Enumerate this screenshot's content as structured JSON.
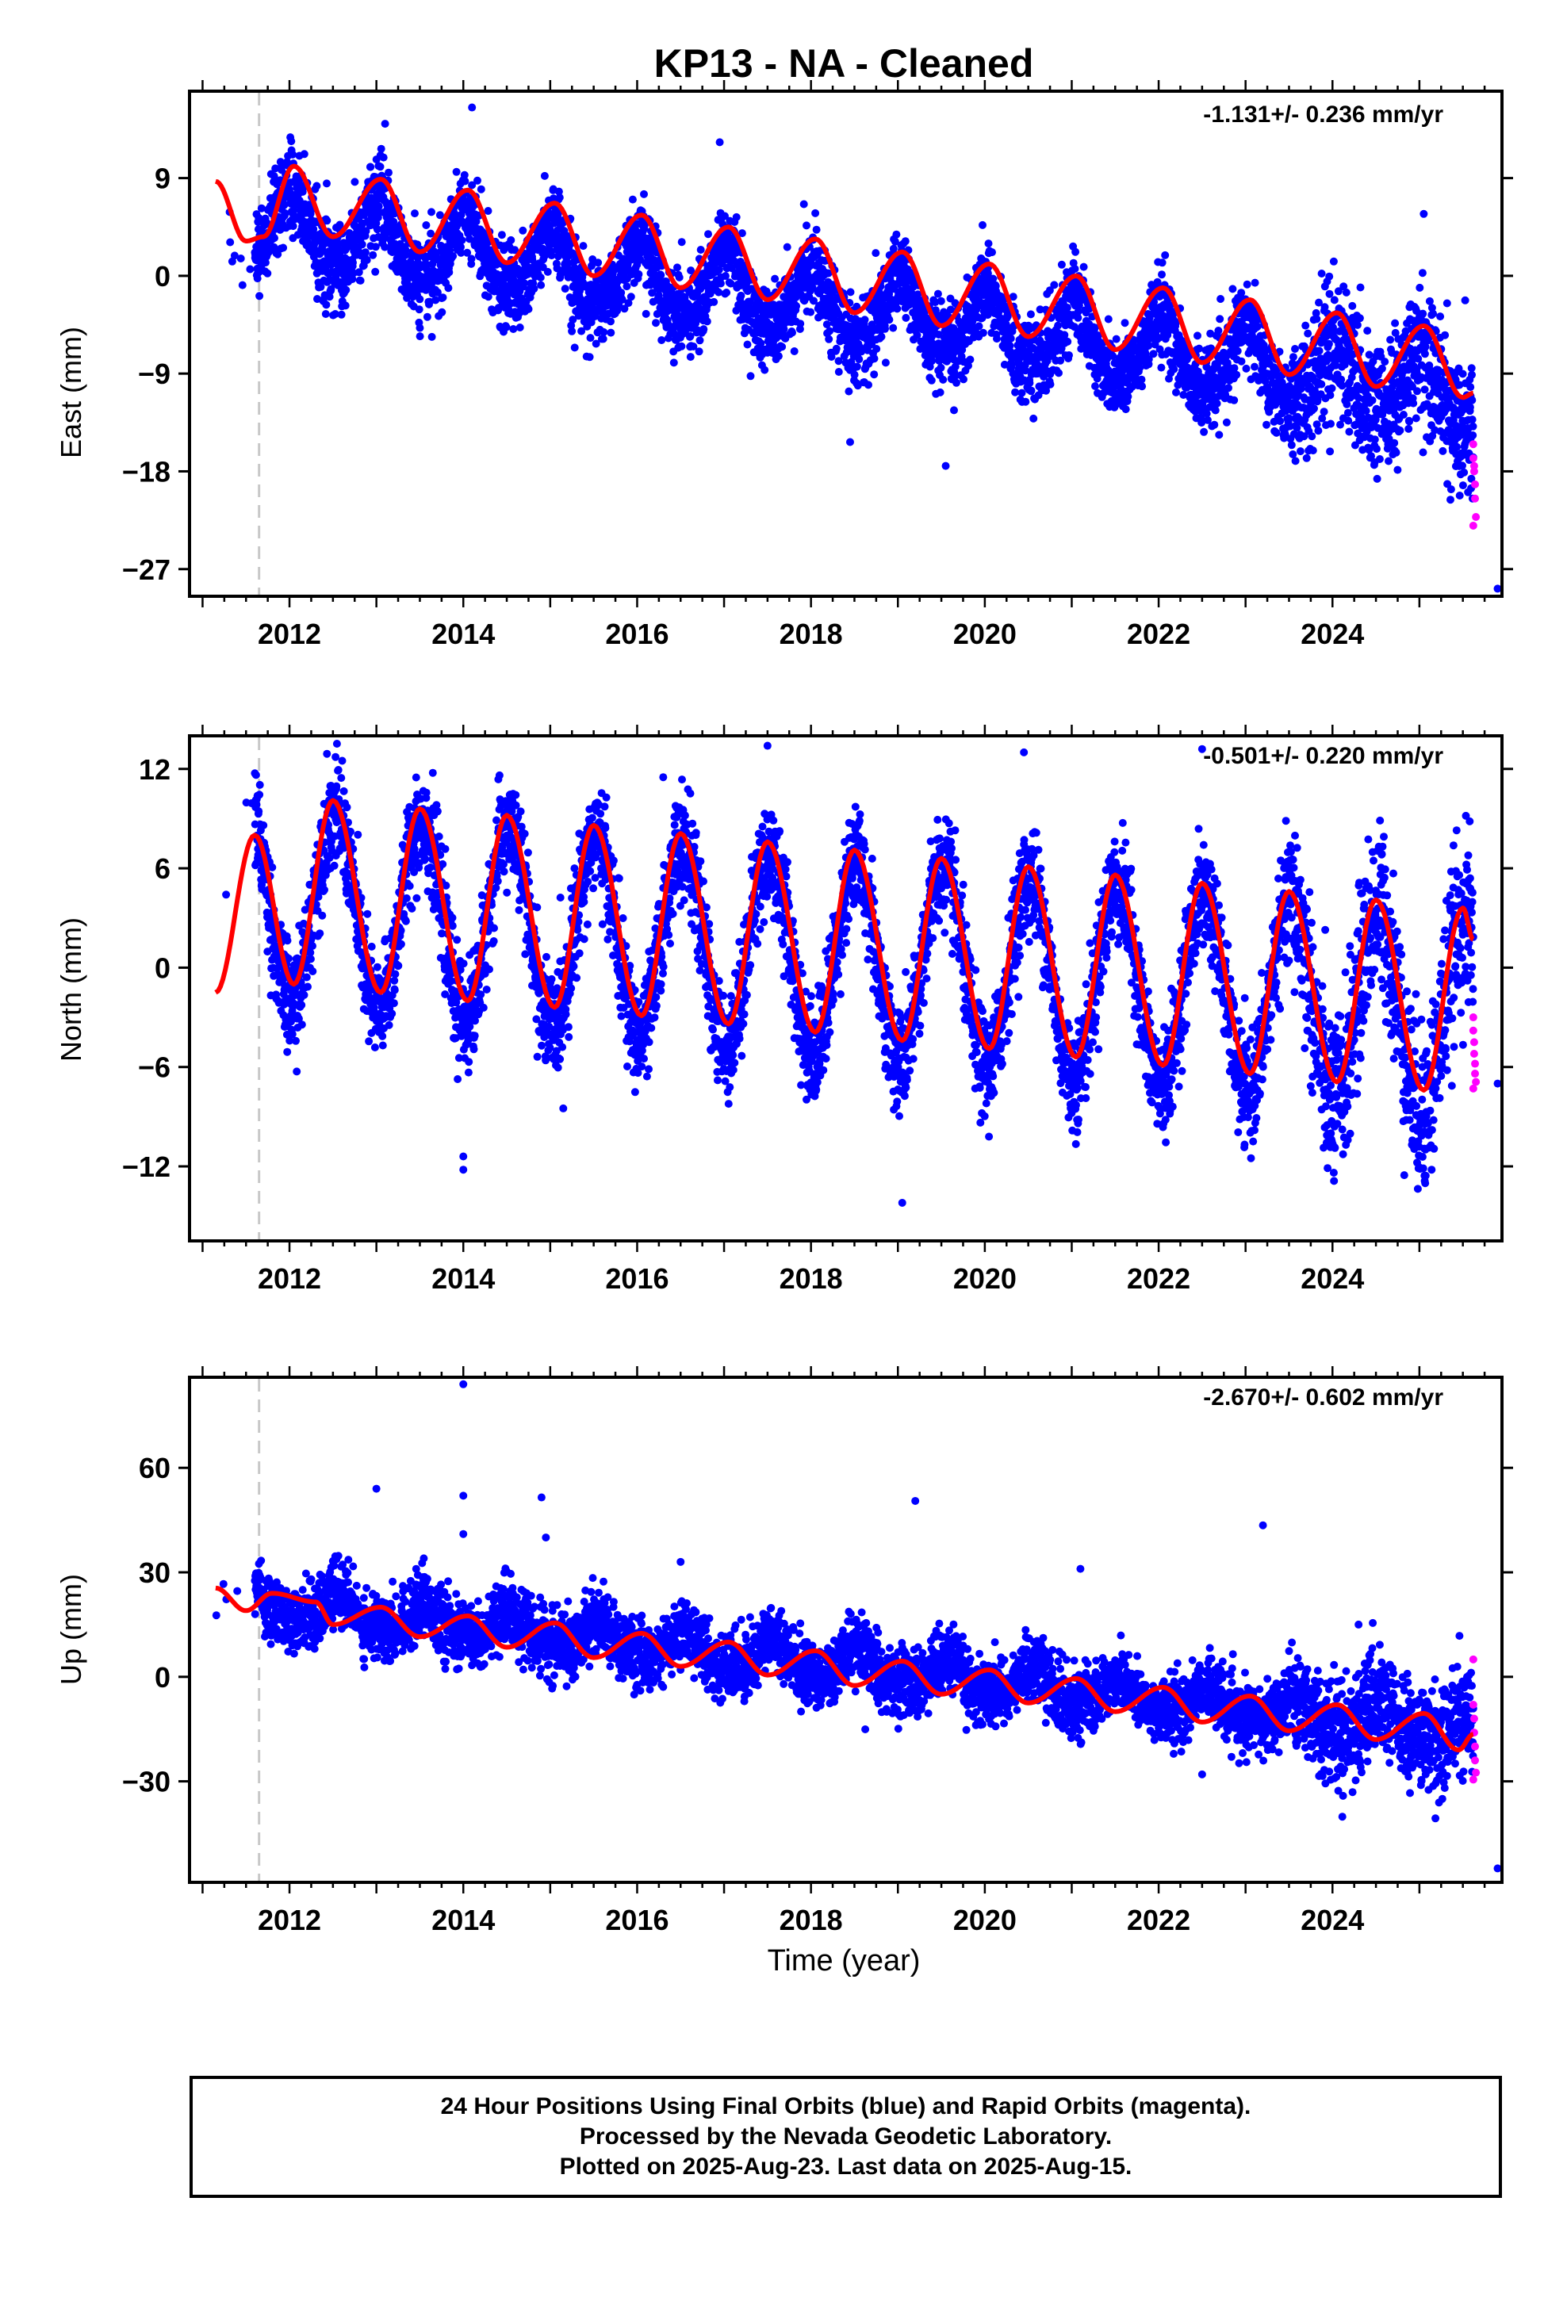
{
  "title": "KP13  - NA - Cleaned",
  "xlabel": "Time (year)",
  "caption": [
    "24 Hour Positions Using Final Orbits (blue) and Rapid Orbits (magenta).",
    "Processed by the Nevada Geodetic Laboratory.",
    "Plotted on 2025-Aug-23. Last data on 2025-Aug-15."
  ],
  "colors": {
    "final_orbits": "#0000ff",
    "rapid_orbits": "#ff00ff",
    "model": "#ff0000",
    "marker_line": "#c8c8c8"
  },
  "chart_data": [
    {
      "type": "scatter",
      "panel": "east",
      "ylabel": "East (mm)",
      "rate_text": "-1.131+/- 0.236 mm/yr",
      "xlim": [
        2010.85,
        2025.95
      ],
      "ylim": [
        -29.5,
        17
      ],
      "yticks": [
        9,
        0,
        -9,
        -18,
        -27
      ],
      "ytick_labels": [
        "9",
        "0",
        "−9",
        "−18",
        "−27"
      ],
      "xticks": [
        2012,
        2014,
        2016,
        2018,
        2020,
        2022,
        2024
      ],
      "xtick_labels": [
        "2012",
        "2014",
        "2016",
        "2018",
        "2020",
        "2022",
        "2024"
      ],
      "marker_line_x": 2011.65,
      "series": [
        {
          "role": "final_orbits",
          "model": {
            "t_start": 2011.15,
            "t_end": 2025.62,
            "t0": 2011.15,
            "offset": 5.2,
            "rate": -1.131,
            "annual_amplitude": 3.2,
            "peak_phase": 0.02,
            "semiannual_amplitude": 0.5
          },
          "scatter_sigma": 1.9,
          "outliers": [
            [
              2013.5,
              -4.8
            ],
            [
              2015.9,
              -2.5
            ],
            [
              2016.95,
              12.3
            ],
            [
              2018.45,
              -15.3
            ],
            [
              2019.55,
              -17.5
            ],
            [
              2025.9,
              -28.8
            ],
            [
              2025.05,
              5.7
            ],
            [
              2014.1,
              15.5
            ],
            [
              2013.1,
              14.0
            ]
          ]
        },
        {
          "role": "rapid_orbits",
          "points": [
            [
              2025.62,
              -15.5
            ],
            [
              2025.62,
              -16.8
            ],
            [
              2025.63,
              -17.5
            ],
            [
              2025.63,
              -18.0
            ],
            [
              2025.64,
              -19.2
            ],
            [
              2025.64,
              -20.5
            ],
            [
              2025.65,
              -22.2
            ],
            [
              2025.62,
              -23.0
            ]
          ]
        }
      ],
      "model_points": [
        [
          2011.15,
          8.7
        ],
        [
          2011.5,
          3.2
        ],
        [
          2011.7,
          3.6
        ],
        [
          2012.05,
          10.1
        ],
        [
          2012.5,
          3.6
        ],
        [
          2013.05,
          8.9
        ],
        [
          2013.5,
          2.2
        ],
        [
          2014.05,
          7.9
        ],
        [
          2014.5,
          1.2
        ],
        [
          2015.05,
          6.7
        ],
        [
          2015.5,
          0.0
        ],
        [
          2016.05,
          5.6
        ],
        [
          2016.5,
          -1.1
        ],
        [
          2017.05,
          4.5
        ],
        [
          2017.5,
          -2.2
        ],
        [
          2018.05,
          3.4
        ],
        [
          2018.5,
          -3.4
        ],
        [
          2019.05,
          2.2
        ],
        [
          2019.5,
          -4.6
        ],
        [
          2020.05,
          1.1
        ],
        [
          2020.5,
          -5.6
        ],
        [
          2021.05,
          0.0
        ],
        [
          2021.5,
          -6.8
        ],
        [
          2022.05,
          -1.1
        ],
        [
          2022.5,
          -8.0
        ],
        [
          2023.05,
          -2.2
        ],
        [
          2023.5,
          -9.1
        ],
        [
          2024.05,
          -3.4
        ],
        [
          2024.5,
          -10.2
        ],
        [
          2025.05,
          -4.6
        ],
        [
          2025.5,
          -11.2
        ],
        [
          2025.62,
          -10.8
        ]
      ]
    },
    {
      "type": "scatter",
      "panel": "north",
      "ylabel": "North (mm)",
      "rate_text": "-0.501+/- 0.220 mm/yr",
      "xlim": [
        2010.85,
        2025.95
      ],
      "ylim": [
        -16.5,
        14
      ],
      "yticks": [
        12,
        6,
        0,
        -6,
        -12
      ],
      "ytick_labels": [
        "12",
        "6",
        "0",
        "−6",
        "−12"
      ],
      "xticks": [
        2012,
        2014,
        2016,
        2018,
        2020,
        2022,
        2024
      ],
      "xtick_labels": [
        "2012",
        "2014",
        "2016",
        "2018",
        "2020",
        "2022",
        "2024"
      ],
      "marker_line_x": 2011.65,
      "series": [
        {
          "role": "final_orbits",
          "model": {
            "t_start": 2011.15,
            "t_end": 2025.62,
            "t0": 2011.15,
            "offset": 4.2,
            "rate": -0.501,
            "annual_amplitude": 5.9,
            "peak_phase": 0.52,
            "semiannual_amplitude": 0.0
          },
          "scatter_sigma": 1.6,
          "outliers": [
            [
              2014.0,
              -11.4
            ],
            [
              2014.0,
              -12.2
            ],
            [
              2015.15,
              -8.5
            ],
            [
              2019.05,
              -14.2
            ],
            [
              2017.5,
              13.4
            ],
            [
              2020.45,
              13.0
            ],
            [
              2022.5,
              13.2
            ],
            [
              2016.3,
              11.5
            ],
            [
              2025.9,
              -7.0
            ]
          ]
        },
        {
          "role": "rapid_orbits",
          "points": [
            [
              2025.62,
              -3.0
            ],
            [
              2025.62,
              -3.8
            ],
            [
              2025.63,
              -4.5
            ],
            [
              2025.63,
              -5.2
            ],
            [
              2025.64,
              -5.8
            ],
            [
              2025.64,
              -6.4
            ],
            [
              2025.65,
              -6.9
            ],
            [
              2025.62,
              -7.3
            ]
          ]
        }
      ],
      "model_points": [
        [
          2011.15,
          -1.5
        ],
        [
          2011.6,
          8.0
        ],
        [
          2012.05,
          -1.0
        ],
        [
          2012.5,
          10.1
        ],
        [
          2013.05,
          -1.5
        ],
        [
          2013.5,
          9.6
        ],
        [
          2014.05,
          -2.0
        ],
        [
          2014.5,
          9.2
        ],
        [
          2015.05,
          -2.4
        ],
        [
          2015.5,
          8.6
        ],
        [
          2016.05,
          -2.9
        ],
        [
          2016.5,
          8.1
        ],
        [
          2017.05,
          -3.4
        ],
        [
          2017.5,
          7.6
        ],
        [
          2018.05,
          -3.9
        ],
        [
          2018.5,
          7.1
        ],
        [
          2019.05,
          -4.4
        ],
        [
          2019.5,
          6.6
        ],
        [
          2020.05,
          -4.9
        ],
        [
          2020.5,
          6.1
        ],
        [
          2021.05,
          -5.4
        ],
        [
          2021.5,
          5.6
        ],
        [
          2022.05,
          -5.9
        ],
        [
          2022.5,
          5.1
        ],
        [
          2023.05,
          -6.4
        ],
        [
          2023.5,
          4.6
        ],
        [
          2024.05,
          -6.9
        ],
        [
          2024.5,
          4.1
        ],
        [
          2025.05,
          -7.4
        ],
        [
          2025.5,
          3.6
        ],
        [
          2025.62,
          1.7
        ]
      ]
    },
    {
      "type": "scatter",
      "panel": "up",
      "ylabel": "Up (mm)",
      "rate_text": "-2.670+/- 0.602 mm/yr",
      "xlim": [
        2010.85,
        2025.95
      ],
      "ylim": [
        -59,
        86
      ],
      "yticks": [
        60,
        30,
        0,
        -30
      ],
      "ytick_labels": [
        "60",
        "30",
        "0",
        "−30"
      ],
      "xticks": [
        2012,
        2014,
        2016,
        2018,
        2020,
        2022,
        2024
      ],
      "xtick_labels": [
        "2012",
        "2014",
        "2016",
        "2018",
        "2020",
        "2022",
        "2024"
      ],
      "marker_line_x": 2011.65,
      "series": [
        {
          "role": "final_orbits",
          "model": {
            "t_start": 2011.15,
            "t_end": 2025.62,
            "t0": 2011.15,
            "offset": 22.5,
            "rate": -2.67,
            "annual_amplitude": 4.2,
            "peak_phase": 0.55,
            "semiannual_amplitude": 1.2
          },
          "scatter_sigma": 4.6,
          "outliers": [
            [
              2014.0,
              84.0
            ],
            [
              2013.0,
              54.0
            ],
            [
              2014.0,
              52.0
            ],
            [
              2014.9,
              51.5
            ],
            [
              2019.2,
              50.5
            ],
            [
              2014.0,
              41.0
            ],
            [
              2014.95,
              40.0
            ],
            [
              2023.2,
              43.5
            ],
            [
              2021.1,
              31.0
            ],
            [
              2016.5,
              33.0
            ],
            [
              2025.9,
              -55.0
            ],
            [
              2024.3,
              15.0
            ],
            [
              2022.5,
              -28.0
            ]
          ]
        },
        {
          "role": "rapid_orbits",
          "points": [
            [
              2025.62,
              5.0
            ],
            [
              2025.62,
              -8.0
            ],
            [
              2025.63,
              -12.0
            ],
            [
              2025.63,
              -16.0
            ],
            [
              2025.64,
              -20.0
            ],
            [
              2025.64,
              -24.0
            ],
            [
              2025.65,
              -27.5
            ],
            [
              2025.62,
              -29.5
            ]
          ]
        }
      ],
      "model_points": [
        [
          2011.15,
          25.5
        ],
        [
          2011.5,
          19.0
        ],
        [
          2011.8,
          24.0
        ],
        [
          2012.3,
          21.5
        ],
        [
          2012.5,
          15.0
        ],
        [
          2013.05,
          20.0
        ],
        [
          2013.5,
          11.5
        ],
        [
          2014.05,
          17.5
        ],
        [
          2014.5,
          8.5
        ],
        [
          2015.05,
          15.5
        ],
        [
          2015.5,
          5.5
        ],
        [
          2016.05,
          12.5
        ],
        [
          2016.5,
          3.0
        ],
        [
          2017.05,
          10.0
        ],
        [
          2017.5,
          0.5
        ],
        [
          2018.05,
          7.5
        ],
        [
          2018.5,
          -2.5
        ],
        [
          2019.05,
          4.5
        ],
        [
          2019.5,
          -5.0
        ],
        [
          2020.05,
          2.0
        ],
        [
          2020.5,
          -7.5
        ],
        [
          2021.05,
          -0.5
        ],
        [
          2021.5,
          -10.0
        ],
        [
          2022.05,
          -3.0
        ],
        [
          2022.5,
          -13.0
        ],
        [
          2023.05,
          -5.5
        ],
        [
          2023.5,
          -15.5
        ],
        [
          2024.05,
          -8.0
        ],
        [
          2024.5,
          -18.0
        ],
        [
          2025.05,
          -10.5
        ],
        [
          2025.45,
          -21.0
        ],
        [
          2025.62,
          -16.5
        ]
      ]
    }
  ]
}
